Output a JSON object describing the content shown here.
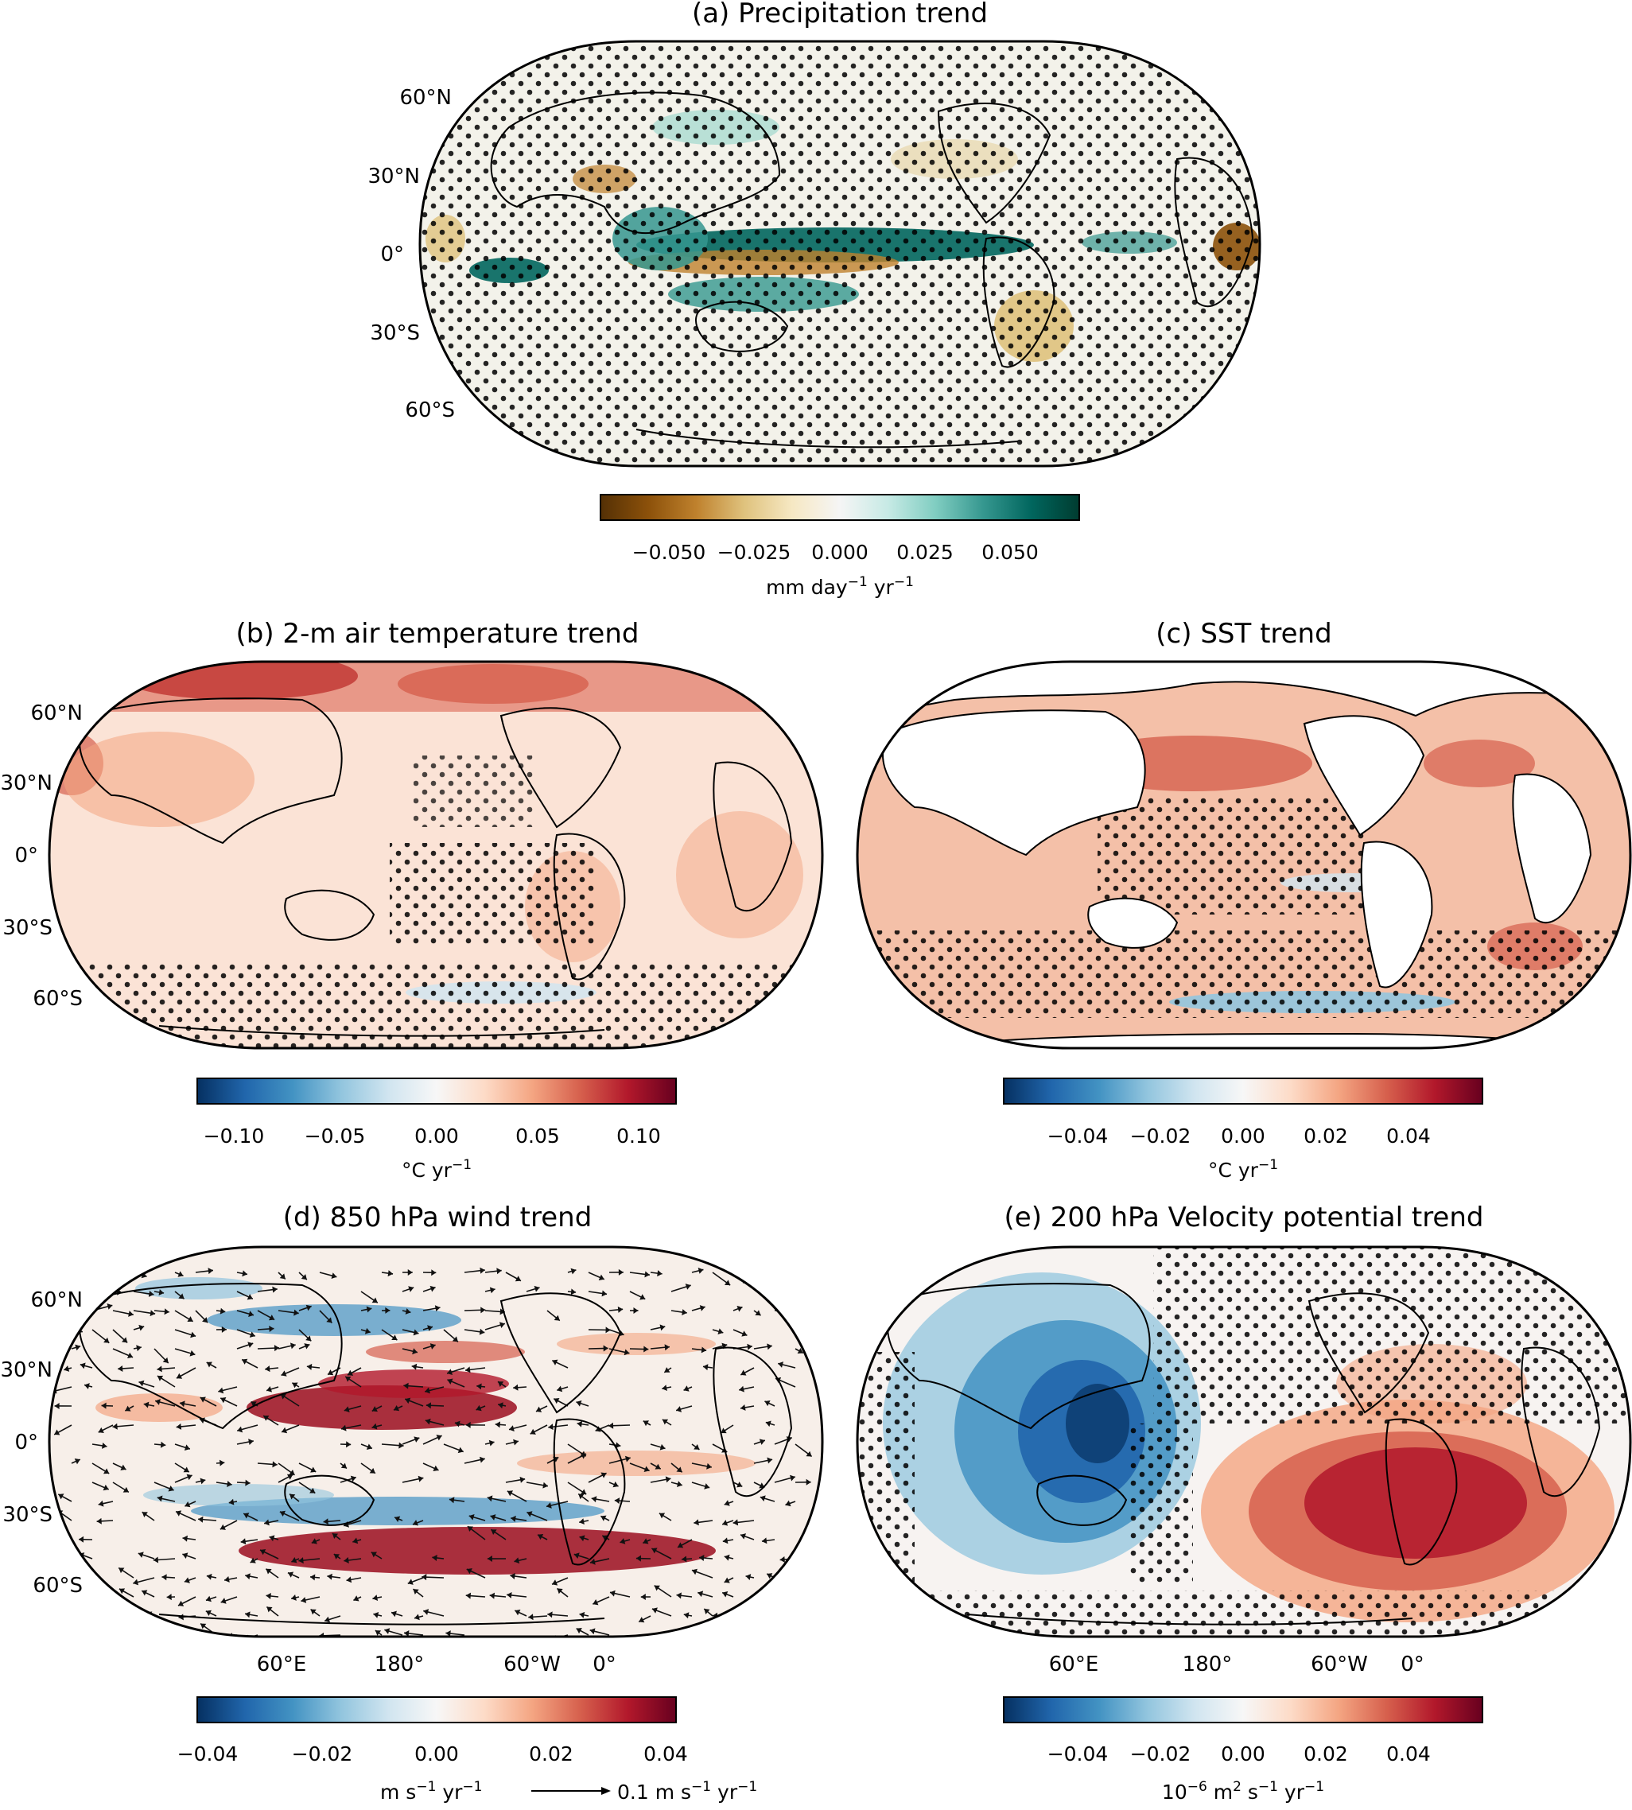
{
  "figure": {
    "panels": {
      "a": {
        "title": "(a) Precipitation trend"
      },
      "b": {
        "title": "(b) 2-m air temperature trend"
      },
      "c": {
        "title": "(c) SST trend"
      },
      "d": {
        "title": "(d) 850 hPa wind trend"
      },
      "e": {
        "title": "(e) 200 hPa Velocity potential trend"
      }
    },
    "lat_labels": [
      "60°N",
      "30°N",
      "0°",
      "30°S",
      "60°S"
    ],
    "lon_labels": [
      "60°E",
      "180°",
      "60°W",
      "0°"
    ]
  },
  "colorbars": {
    "a": {
      "ticks": [
        "−0.050",
        "−0.025",
        "0.000",
        "0.025",
        "0.050"
      ],
      "label_main": "mm day",
      "sup1": "−1",
      "mid": " yr",
      "sup2": "−1"
    },
    "b": {
      "ticks": [
        "−0.10",
        "−0.05",
        "0.00",
        "0.05",
        "0.10"
      ],
      "label_main": "°C yr",
      "sup1": "−1"
    },
    "c": {
      "ticks": [
        "−0.04",
        "−0.02",
        "0.00",
        "0.02",
        "0.04"
      ],
      "label_main": "°C yr",
      "sup1": "−1"
    },
    "d": {
      "ticks": [
        "−0.04",
        "−0.02",
        "0.00",
        "0.02",
        "0.04"
      ],
      "label_main": "m s",
      "sup1": "−1",
      "mid": " yr",
      "sup2": "−1",
      "quiver_key_main": "0.1 m s",
      "quiver_sup1": "−1",
      "quiver_mid": " yr",
      "quiver_sup2": "−1"
    },
    "e": {
      "ticks": [
        "−0.04",
        "−0.02",
        "0.00",
        "0.02",
        "0.04"
      ],
      "label_pre": "10",
      "sup0": "−6",
      "label_main": " m",
      "sup_m": "2",
      "mid0": " s",
      "sup1": "−1",
      "mid": " yr",
      "sup2": "−1"
    }
  },
  "colors": {
    "brbg": [
      "#543005",
      "#8c510a",
      "#bf812d",
      "#dfc27d",
      "#f6e8c3",
      "#f5f5f5",
      "#c7eae5",
      "#80cdc1",
      "#35978f",
      "#01665e",
      "#003c30"
    ],
    "rdbu_r": [
      "#053061",
      "#2166ac",
      "#4393c3",
      "#92c5de",
      "#d1e5f0",
      "#f7f7f7",
      "#fddbc7",
      "#f4a582",
      "#d6604d",
      "#b2182b",
      "#67001f"
    ]
  },
  "chart_data": [
    {
      "panel": "a",
      "type": "heatmap",
      "title": "(a) Precipitation trend",
      "colorbar_range": [
        -0.07,
        0.07
      ],
      "colorbar_ticks": [
        -0.05,
        -0.025,
        0.0,
        0.025,
        0.05
      ],
      "colormap": "BrBG",
      "units": "mm day−1 yr−1",
      "stippling": true
    },
    {
      "panel": "b",
      "type": "heatmap",
      "title": "(b) 2-m air temperature trend",
      "colorbar_range": [
        -0.12,
        0.12
      ],
      "colorbar_ticks": [
        -0.1,
        -0.05,
        0.0,
        0.05,
        0.1
      ],
      "colormap": "RdBu_r",
      "units": "°C yr−1",
      "stippling": true
    },
    {
      "panel": "c",
      "type": "heatmap",
      "title": "(c) SST trend",
      "colorbar_range": [
        -0.058,
        0.058
      ],
      "colorbar_ticks": [
        -0.04,
        -0.02,
        0.0,
        0.02,
        0.04
      ],
      "colormap": "RdBu_r",
      "units": "°C yr−1",
      "stippling": true
    },
    {
      "panel": "d",
      "type": "heatmap",
      "title": "(d) 850 hPa wind trend",
      "colorbar_range": [
        -0.045,
        0.045
      ],
      "colorbar_ticks": [
        -0.04,
        -0.02,
        0.0,
        0.02,
        0.04
      ],
      "colormap": "RdBu_r",
      "units": "m s−1 yr−1",
      "vectors": true,
      "reference_vector": "0.1 m s−1 yr−1"
    },
    {
      "panel": "e",
      "type": "heatmap",
      "title": "(e) 200 hPa Velocity potential trend",
      "colorbar_range": [
        -0.058,
        0.058
      ],
      "colorbar_ticks": [
        -0.04,
        -0.02,
        0.0,
        0.02,
        0.04
      ],
      "colormap": "RdBu_r",
      "units": "10−6 m2 s−1 yr−1",
      "stippling": true
    }
  ]
}
